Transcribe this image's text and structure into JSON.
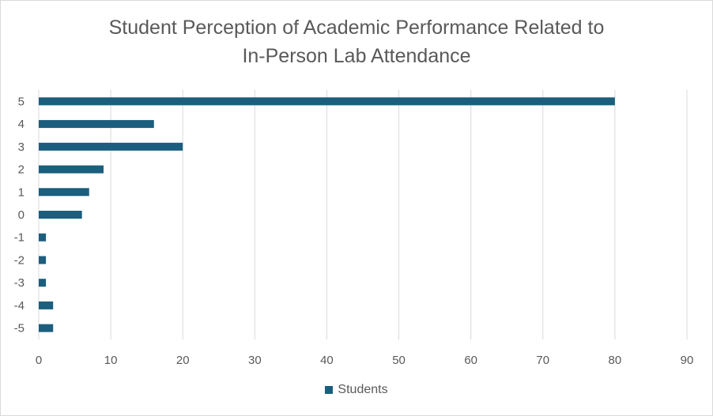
{
  "chart_data": {
    "type": "bar",
    "orientation": "horizontal",
    "title_lines": [
      "Student Perception of Academic Performance Related to",
      "In-Person Lab Attendance"
    ],
    "categories": [
      "-5",
      "-4",
      "-3",
      "-2",
      "-1",
      "0",
      "1",
      "2",
      "3",
      "4",
      "5"
    ],
    "series": [
      {
        "name": "Students",
        "values": [
          2,
          2,
          1,
          1,
          1,
          6,
          7,
          9,
          20,
          16,
          80
        ]
      }
    ],
    "xlim": [
      0,
      90
    ],
    "xticks": [
      0,
      10,
      20,
      30,
      40,
      50,
      60,
      70,
      80,
      90
    ],
    "grid": "vertical",
    "legend_position": "bottom",
    "color": "#1b5e7e"
  }
}
